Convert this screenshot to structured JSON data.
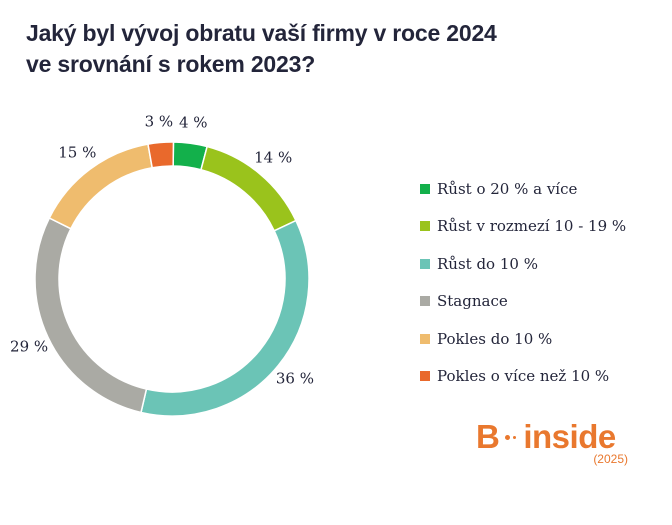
{
  "title_lines": [
    "Jaký byl vývoj obratu vaší firmy v roce 2024",
    "ve srovnání s rokem 2023?"
  ],
  "chart_data": {
    "type": "pie",
    "variant": "donut",
    "categories": [
      "Růst o 20 % a více",
      "Růst v rozmezí 10 - 19 %",
      "Růst do 10 %",
      "Stagnace",
      "Pokles do 10 %",
      "Pokles o více než 10 %"
    ],
    "values": [
      4,
      14,
      36,
      29,
      15,
      3
    ],
    "value_labels": [
      "4 %",
      "14 %",
      "36 %",
      "29 %",
      "15 %",
      "3 %"
    ],
    "colors": [
      "#13b04b",
      "#9ac31c",
      "#6bc4b6",
      "#aaaaa4",
      "#efbc6e",
      "#e9692c"
    ],
    "legend_position": "right"
  },
  "brand": {
    "letter": "B",
    "word": "inside",
    "year": "(2025)",
    "color": "#e9782e"
  }
}
